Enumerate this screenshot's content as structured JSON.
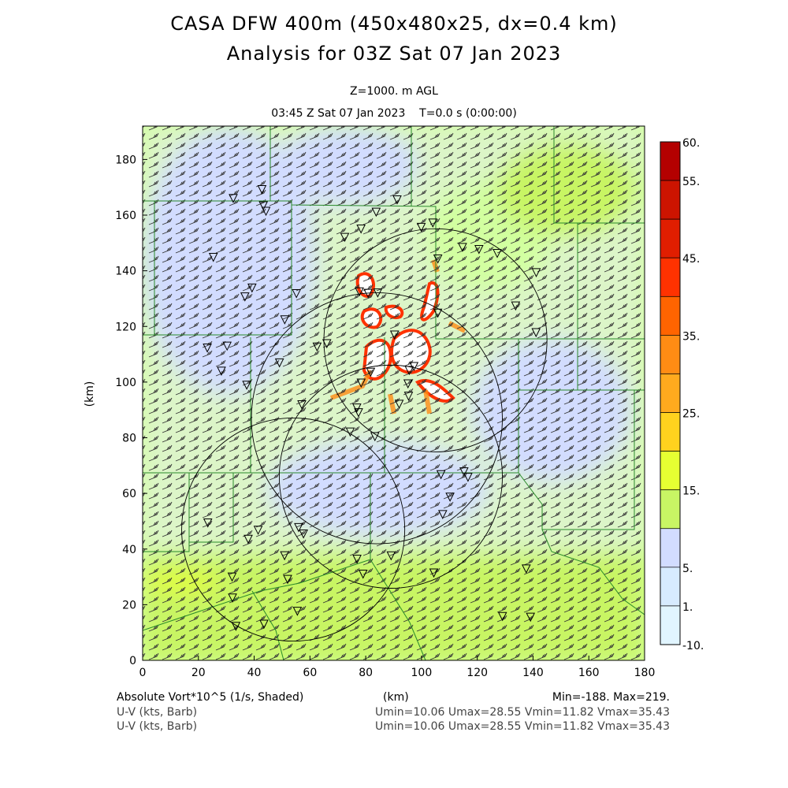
{
  "header": {
    "title1": "CASA DFW 400m (450x480x25, dx=0.4 km)",
    "title2": "Analysis for 03Z Sat 07 Jan 2023",
    "level": "Z=1000. m AGL",
    "time": "03:45 Z Sat 07 Jan 2023    T=0.0 s (0:00:00)"
  },
  "footer": {
    "field1": "Absolute Vort*10^5 (1/s, Shaded)",
    "xunit": "(km)",
    "minmax": "Min=-188. Max=219.",
    "field2": "U-V (kts, Barb)",
    "stats2": "Umin=10.06 Umax=28.55 Vmin=11.82 Vmax=35.43",
    "field3": "U-V (kts, Barb)",
    "stats3": "Umin=10.06 Umax=28.55 Vmin=11.82 Vmax=35.43"
  },
  "chart_data": {
    "type": "heatmap",
    "xlabel": "",
    "ylabel": "(km)",
    "xlim": [
      0,
      180
    ],
    "ylim": [
      0,
      192
    ],
    "xticks": [
      "0",
      "20",
      "40",
      "60",
      "80",
      "100",
      "120",
      "140",
      "160",
      "180"
    ],
    "yticks": [
      "0",
      "20",
      "40",
      "60",
      "80",
      "100",
      "120",
      "140",
      "160",
      "180"
    ],
    "colorbar": {
      "labels": [
        {
          "text": "60.",
          "band": 0
        },
        {
          "text": "55.",
          "band": 1
        },
        {
          "text": "45.",
          "band": 3
        },
        {
          "text": "35.",
          "band": 5
        },
        {
          "text": "25.",
          "band": 7
        },
        {
          "text": "15.",
          "band": 9
        },
        {
          "text": "5.",
          "band": 11
        },
        {
          "text": "1.",
          "band": 12
        },
        {
          "text": "-10.",
          "band": 13
        }
      ],
      "colors": [
        "#b40000",
        "#cc1400",
        "#e01e00",
        "#ff3200",
        "#ff6400",
        "#ff8c14",
        "#ffaa1e",
        "#ffd21e",
        "#e6ff32",
        "#c8f564",
        "#d2ffa0",
        "#e1ffd2",
        "#d2dcff",
        "#d7ebff",
        "#e1f5ff"
      ]
    },
    "range_rings_km": [
      {
        "cx": 105,
        "cy": 115,
        "r": 40
      },
      {
        "cx": 84,
        "cy": 87,
        "r": 45
      },
      {
        "cx": 89,
        "cy": 66,
        "r": 40
      },
      {
        "cx": 54,
        "cy": 47,
        "r": 40
      }
    ]
  }
}
